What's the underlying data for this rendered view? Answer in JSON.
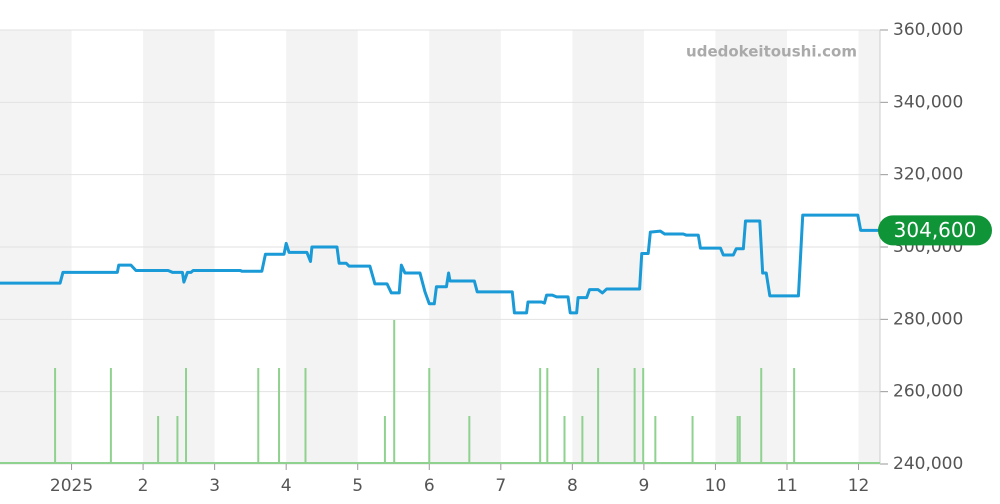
{
  "chart_data": {
    "type": "line",
    "watermark": "udedokeitoushi.com",
    "xlim": [
      0,
      12.3
    ],
    "xticks": [
      {
        "value": 1,
        "label": "2025"
      },
      2,
      3,
      4,
      5,
      6,
      7,
      8,
      9,
      10,
      11,
      12
    ],
    "ylim": [
      240000,
      360000
    ],
    "yticks": [
      {
        "value": 240000,
        "label": "240,000"
      },
      {
        "value": 260000,
        "label": "260,000"
      },
      {
        "value": 280000,
        "label": "280,000"
      },
      {
        "value": 300000,
        "label": "300,000"
      },
      {
        "value": 320000,
        "label": "320,000"
      },
      {
        "value": 340000,
        "label": "340,000"
      },
      {
        "value": 360000,
        "label": "360,000"
      }
    ],
    "grid": true,
    "current_value": {
      "value": 304600,
      "label": "304,600",
      "color": "#0f9438"
    },
    "series": [
      {
        "color": "#1a9ad6",
        "x": [
          0,
          0.84,
          0.88,
          1.64,
          1.66,
          1.83,
          1.9,
          2.35,
          2.41,
          2.55,
          2.57,
          2.62,
          2.67,
          2.7,
          3.36,
          3.38,
          3.66,
          3.71,
          3.97,
          4.0,
          4.04,
          4.29,
          4.34,
          4.36,
          4.71,
          4.74,
          4.84,
          4.88,
          5.17,
          5.24,
          5.41,
          5.47,
          5.58,
          5.61,
          5.66,
          5.87,
          5.94,
          6.0,
          6.07,
          6.1,
          6.24,
          6.27,
          6.29,
          6.63,
          6.67,
          7.16,
          7.19,
          7.36,
          7.38,
          7.57,
          7.61,
          7.64,
          7.72,
          7.78,
          7.94,
          7.97,
          8.06,
          8.08,
          8.2,
          8.24,
          8.36,
          8.42,
          8.48,
          8.94,
          8.97,
          9.06,
          9.09,
          9.23,
          9.29,
          9.55,
          9.59,
          9.76,
          9.79,
          10.07,
          10.11,
          10.25,
          10.29,
          10.39,
          10.42,
          10.62,
          10.66,
          10.71,
          10.76,
          11.16,
          11.22,
          11.99,
          12.03,
          12.3
        ],
        "values": [
          290000,
          290000,
          293000,
          293000,
          295000,
          295000,
          293500,
          293500,
          293000,
          293000,
          290300,
          293000,
          293000,
          293500,
          293500,
          293300,
          293300,
          298000,
          298000,
          301000,
          298500,
          298500,
          296000,
          300000,
          300000,
          295500,
          295500,
          294700,
          294700,
          289800,
          289800,
          287300,
          287300,
          295000,
          292800,
          292800,
          287600,
          284300,
          284300,
          289000,
          289000,
          292800,
          290600,
          290600,
          287600,
          287600,
          281800,
          281800,
          284800,
          284800,
          284500,
          286700,
          286700,
          286200,
          286200,
          281800,
          281800,
          286000,
          286000,
          288200,
          288200,
          287300,
          288400,
          288400,
          298200,
          298200,
          304100,
          304400,
          303600,
          303600,
          303300,
          303300,
          299700,
          299700,
          297800,
          297800,
          299500,
          299500,
          307200,
          307200,
          292800,
          292800,
          286500,
          286500,
          308800,
          308800,
          304600,
          304600
        ]
      },
      {
        "type": "volume",
        "color": "#8fd18f",
        "x": [
          0.77,
          1.55,
          2.21,
          2.48,
          2.6,
          3.61,
          3.9,
          4.27,
          5.38,
          5.51,
          6.0,
          6.56,
          7.55,
          7.65,
          7.89,
          8.14,
          8.36,
          8.87,
          8.99,
          9.16,
          9.68,
          10.31,
          10.34,
          10.64,
          11.1
        ],
        "values": [
          2,
          2,
          1,
          1,
          2,
          2,
          2,
          2,
          1,
          3,
          2,
          1,
          2,
          2,
          1,
          1,
          2,
          2,
          2,
          1,
          1,
          1,
          1,
          2,
          2
        ]
      }
    ]
  }
}
